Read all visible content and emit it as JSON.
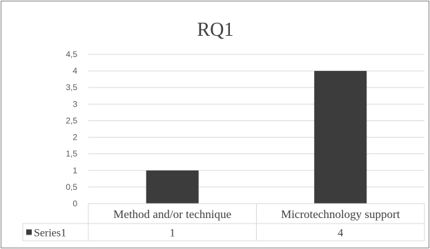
{
  "chart_data": {
    "type": "bar",
    "title": "RQ1",
    "categories": [
      "Method and/or technique",
      "Microtechnology support"
    ],
    "series": [
      {
        "name": "Series1",
        "values": [
          1,
          4
        ],
        "color": "#3c3c3c"
      }
    ],
    "ylim": [
      0,
      4.5
    ],
    "yticks": [
      "0",
      "0,5",
      "1",
      "1,5",
      "2",
      "2,5",
      "3",
      "3,5",
      "4",
      "4,5"
    ],
    "ytick_values": [
      0,
      0.5,
      1,
      1.5,
      2,
      2.5,
      3,
      3.5,
      4,
      4.5
    ],
    "data_table": {
      "rows": [
        {
          "label": "Series1",
          "values": [
            "1",
            "4"
          ]
        }
      ]
    },
    "grid": true,
    "legend_placement": "data-table",
    "colors": {
      "bar": "#3c3c3c",
      "grid": "#d9d9d9",
      "axis_text": "#595959",
      "title": "#404040",
      "border": "#7f7f7f"
    }
  }
}
